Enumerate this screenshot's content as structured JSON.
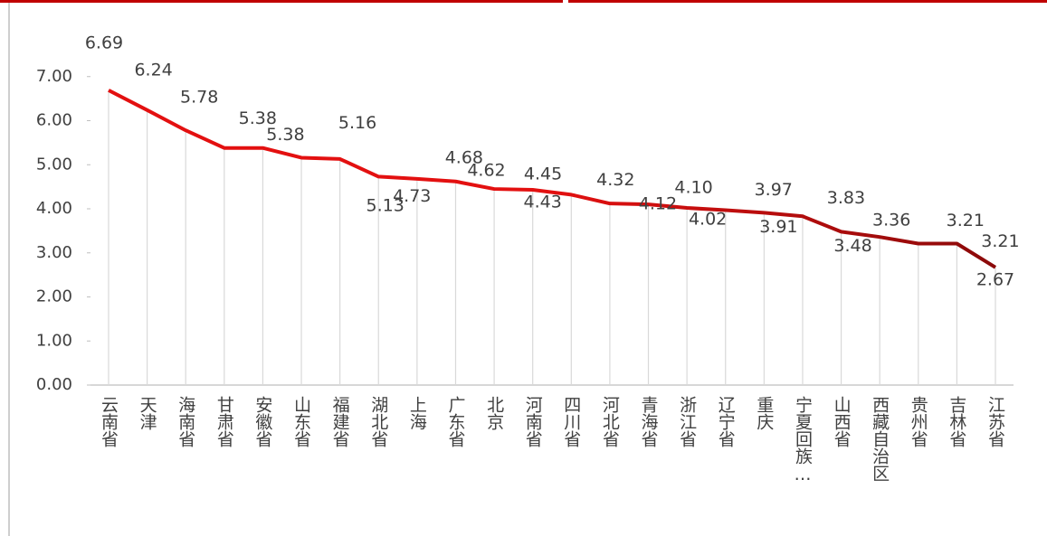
{
  "chart_data": {
    "type": "line",
    "categories": [
      "云南省",
      "天津",
      "海南省",
      "甘肃省",
      "安徽省",
      "山东省",
      "福建省",
      "湖北省",
      "上海",
      "广东省",
      "北京",
      "河南省",
      "四川省",
      "河北省",
      "青海省",
      "浙江省",
      "辽宁省",
      "重庆",
      "宁夏回族…",
      "山西省",
      "西藏自治区",
      "贵州省",
      "吉林省",
      "江苏省"
    ],
    "values": [
      6.69,
      6.24,
      5.78,
      5.38,
      5.38,
      5.16,
      5.13,
      4.73,
      4.68,
      4.62,
      4.45,
      4.43,
      4.32,
      4.12,
      4.1,
      4.02,
      3.97,
      3.91,
      3.83,
      3.48,
      3.36,
      3.21,
      3.21,
      2.67
    ],
    "value_labels": [
      "6.69",
      "6.24",
      "5.78",
      "5.38",
      "5.38",
      "5.16",
      "5.13",
      "4.73",
      "4.68",
      "4.62",
      "4.45",
      "4.43",
      "4.32",
      "4.12",
      "4.10",
      "4.02",
      "3.97",
      "3.91",
      "3.83",
      "3.48",
      "3.36",
      "3.21",
      "3.21",
      "2.67"
    ],
    "colors": [
      "#e31010",
      "#e31010",
      "#8b0a0a"
    ],
    "ylim": [
      0,
      8
    ],
    "yticks": [
      {
        "value": 0,
        "label": "0.00"
      },
      {
        "value": 1,
        "label": "1.00"
      },
      {
        "value": 2,
        "label": "2.00"
      },
      {
        "value": 3,
        "label": "3.00"
      },
      {
        "value": 4,
        "label": "4.00"
      },
      {
        "value": 5,
        "label": "5.00"
      },
      {
        "value": 6,
        "label": "6.00"
      },
      {
        "value": 7,
        "label": "7.00"
      }
    ],
    "drop_lines": true
  }
}
